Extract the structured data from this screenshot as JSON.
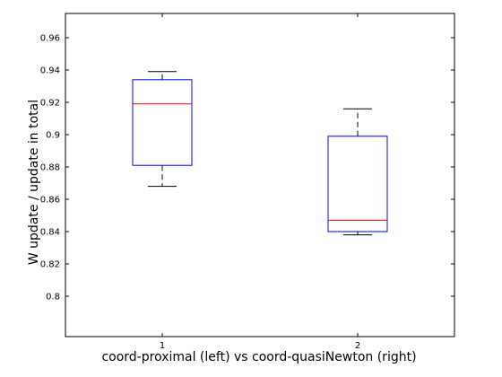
{
  "chart_data": {
    "type": "box",
    "title": "",
    "xlabel": "coord-proximal (left) vs coord-quasiNewton (right)",
    "ylabel": "W update / update in total",
    "categories": [
      "1",
      "2"
    ],
    "ylim": [
      0.775,
      0.975
    ],
    "yticks": [
      0.8,
      0.82,
      0.84,
      0.86,
      0.88,
      0.9,
      0.92,
      0.94,
      0.96
    ],
    "ytick_labels": [
      "0.8",
      "0.82",
      "0.84",
      "0.86",
      "0.88",
      "0.9",
      "0.92",
      "0.94",
      "0.96"
    ],
    "boxes": [
      {
        "category": "1",
        "whisker_low": 0.868,
        "q1": 0.881,
        "median": 0.919,
        "q3": 0.934,
        "whisker_high": 0.939
      },
      {
        "category": "2",
        "whisker_low": 0.838,
        "q1": 0.84,
        "median": 0.847,
        "q3": 0.899,
        "whisker_high": 0.916
      }
    ],
    "colors": {
      "box": "#0000ff",
      "median": "#ff0000",
      "whisker": "#000000",
      "axis": "#000000"
    },
    "grid": false,
    "legend": "none"
  }
}
